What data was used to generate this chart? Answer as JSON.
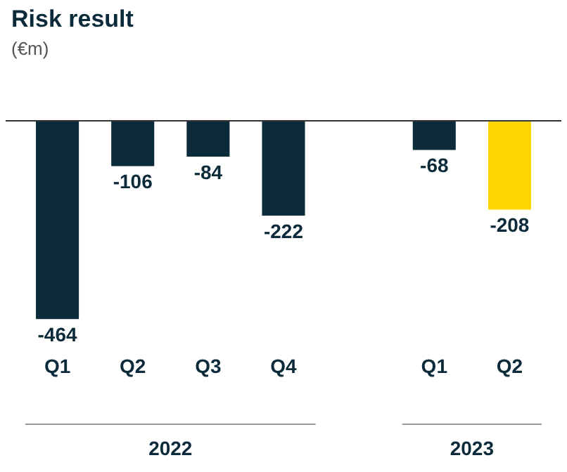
{
  "chart_data": {
    "type": "bar",
    "title": "Risk result",
    "subtitle": "(€m)",
    "categories": [
      "Q1",
      "Q2",
      "Q3",
      "Q4",
      null,
      "Q1",
      "Q2"
    ],
    "values": [
      -464,
      -106,
      -84,
      -222,
      null,
      -68,
      -208
    ],
    "colors": [
      "#0c2b3a",
      "#0c2b3a",
      "#0c2b3a",
      "#0c2b3a",
      "#0c2b3a",
      "#0c2b3a",
      "#ffd600"
    ],
    "data_labels": true,
    "grid": false,
    "legend": false,
    "annotations": [
      "2022",
      "2023"
    ]
  }
}
